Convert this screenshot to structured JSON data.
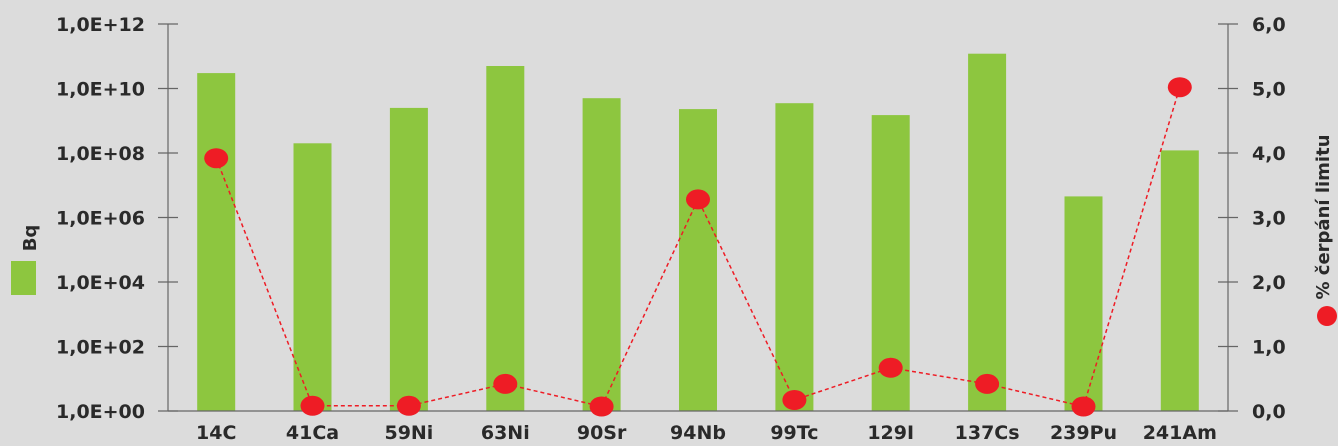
{
  "colors": {
    "background": "#dcdcdc",
    "bar": "#8dc63f",
    "marker": "#ee1c25",
    "line": "#ee1c25",
    "axis": "#666666",
    "text": "#2a2a2a"
  },
  "chart_data": {
    "type": "bar",
    "categories": [
      "14C",
      "41Ca",
      "59Ni",
      "63Ni",
      "90Sr",
      "94Nb",
      "99Tc",
      "129I",
      "137Cs",
      "239Pu",
      "241Am"
    ],
    "series": [
      {
        "axis": "left",
        "mark": "bar",
        "legend_icon": "green-square",
        "values": [
          30000000000.0,
          200000000.0,
          2500000000.0,
          50000000000.0,
          5000000000.0,
          2300000000.0,
          3500000000.0,
          1500000000.0,
          120000000000.0,
          4500000.0,
          120000000.0
        ]
      },
      {
        "axis": "right",
        "mark": "line-dashed-with-markers",
        "legend_icon": "red-circle",
        "values": [
          3.92,
          0.08,
          0.08,
          0.42,
          0.07,
          3.28,
          0.17,
          0.67,
          0.42,
          0.07,
          5.02
        ]
      }
    ],
    "y_left": {
      "label": "Bq",
      "scale": "log",
      "lim": [
        1,
        1000000000000.0
      ],
      "ticks": [
        1,
        100,
        10000,
        1000000,
        100000000,
        10000000000,
        1000000000000
      ],
      "tick_labels": [
        "1,0E+00",
        "1,0E+02",
        "1,0E+04",
        "1,0E+06",
        "1,0E+08",
        "1,0E+10",
        "1,0E+12"
      ]
    },
    "y_right": {
      "label": "% čerpání limitu",
      "scale": "linear",
      "lim": [
        0,
        6
      ],
      "ticks": [
        0,
        1,
        2,
        3,
        4,
        5,
        6
      ],
      "tick_labels": [
        "0,0",
        "1,0",
        "2,0",
        "3,0",
        "4,0",
        "5,0",
        "6,0"
      ]
    },
    "grid": false
  }
}
